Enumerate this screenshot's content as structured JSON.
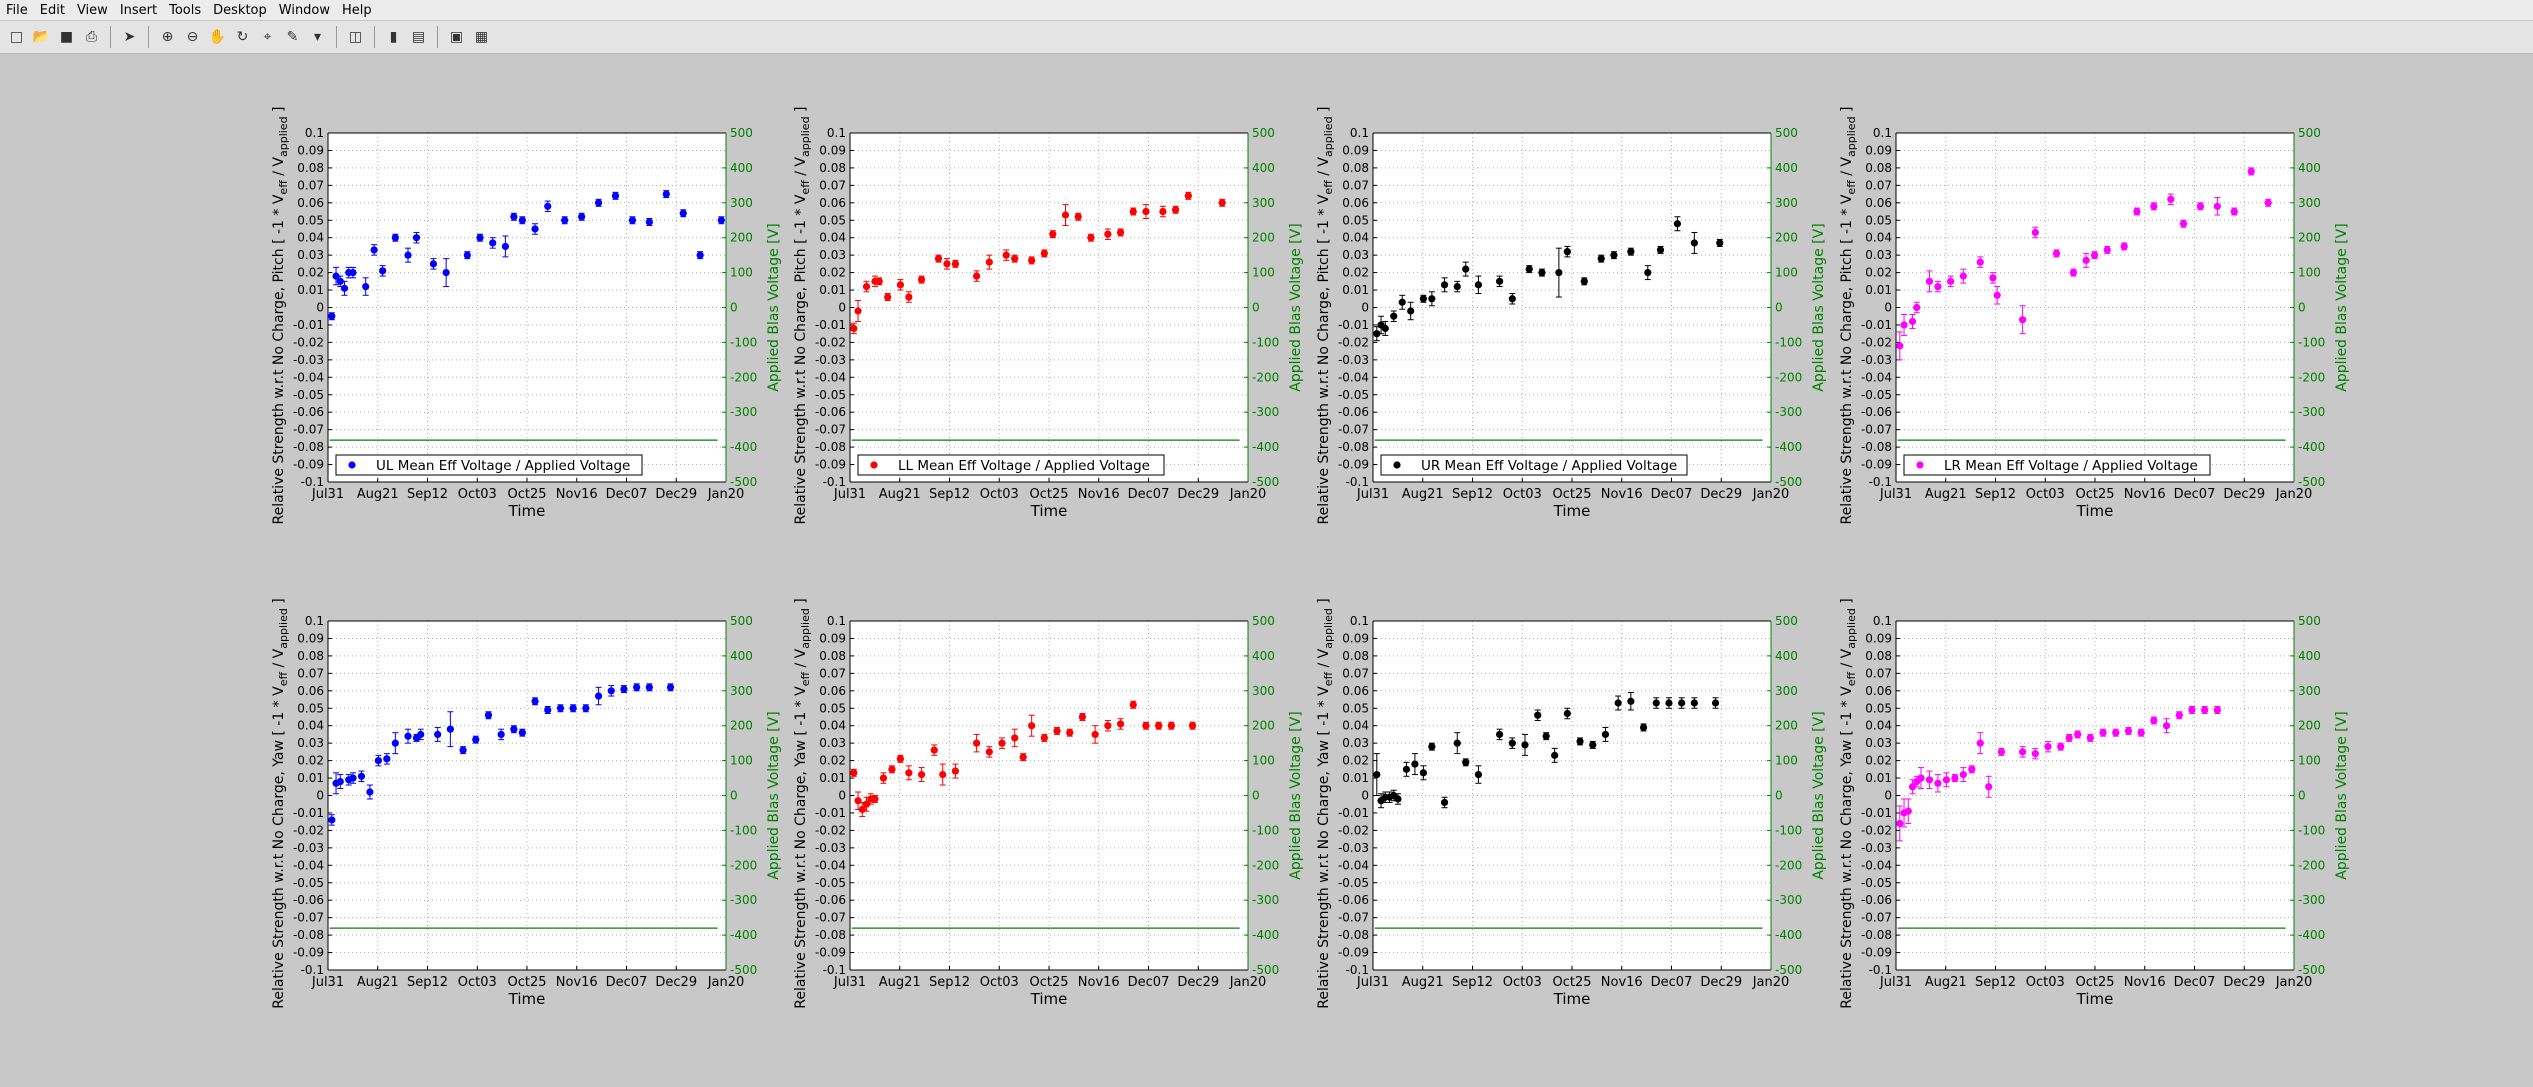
{
  "window": {
    "menus": [
      "File",
      "Edit",
      "View",
      "Insert",
      "Tools",
      "Desktop",
      "Window",
      "Help"
    ],
    "toolbar_icons": [
      "new-figure-icon",
      "open-file-icon",
      "save-icon",
      "print-icon",
      "pointer-icon",
      "zoom-in-icon",
      "zoom-out-icon",
      "pan-icon",
      "rotate-icon",
      "data-cursor-icon",
      "brush-icon",
      "link-icon",
      "colorbar-icon",
      "legend-icon",
      "hide-plot-tools-icon",
      "show-plot-tools-icon"
    ]
  },
  "axes_text": {
    "xlabel": "Time",
    "ylabel_pitch": "Relative Strength w.r.t No Charge, Pitch [ -1 * V",
    "ylabel_yaw": "Relative Strength w.r.t No Charge, Yaw [ -1 * V",
    "ylabel_sub_eff": "eff",
    "ylabel_sep": " / V",
    "ylabel_sub_app": "applied",
    "ylabel_end": " ]",
    "y2label": "Applied Blas Voltage [V]",
    "xticks": [
      "Jul31",
      "Aug21",
      "Sep12",
      "Oct03",
      "Oct25",
      "Nov16",
      "Dec07",
      "Dec29",
      "Jan20"
    ],
    "yticks": [
      "0.1",
      "0.09",
      "0.08",
      "0.07",
      "0.06",
      "0.05",
      "0.04",
      "0.03",
      "0.02",
      "0.01",
      "0",
      "-0.01",
      "-0.02",
      "-0.03",
      "-0.04",
      "-0.05",
      "-0.06",
      "-0.07",
      "-0.08",
      "-0.09",
      "-0.1"
    ],
    "y2ticks": [
      "500",
      "400",
      "300",
      "200",
      "100",
      "0",
      "-100",
      "-200",
      "-300",
      "-400",
      "-500"
    ]
  },
  "chart_data": [
    {
      "type": "scatter",
      "quadrant": "UL",
      "orientation": "Pitch",
      "color": "#0000ff",
      "series": [
        {
          "name": "UL Mean Eff Voltage / Applied Voltage",
          "x": [
            0.9,
            1.9,
            2.9,
            3.9,
            4.9,
            5.9,
            8.9,
            10.9,
            12.9,
            15.9,
            18.9,
            20.9,
            24.9,
            27.9,
            32.9,
            35.9,
            38.9,
            41.9,
            43.9,
            45.9,
            48.9,
            51.9,
            55.9,
            59.9,
            63.9,
            67.9,
            71.9,
            75.9,
            79.9,
            83.9,
            87.9,
            92.9
          ],
          "y": [
            -0.005,
            0.018,
            0.015,
            0.011,
            0.02,
            0.02,
            0.012,
            0.033,
            0.021,
            0.04,
            0.03,
            0.04,
            0.025,
            0.02,
            0.03,
            0.04,
            0.037,
            0.035,
            0.052,
            0.05,
            0.045,
            0.058,
            0.05,
            0.052,
            0.06,
            0.064,
            0.05,
            0.049,
            0.065,
            0.054,
            0.03,
            0.05
          ],
          "err": [
            0.002,
            0.005,
            0.003,
            0.004,
            0.003,
            0.003,
            0.005,
            0.003,
            0.003,
            0.002,
            0.004,
            0.003,
            0.003,
            0.008,
            0.002,
            0.002,
            0.003,
            0.006,
            0.002,
            0.002,
            0.003,
            0.003,
            0.002,
            0.002,
            0.002,
            0.002,
            0.002,
            0.002,
            0.002,
            0.002,
            0.002,
            0.002
          ]
        },
        {
          "name": "Applied Blas Voltage",
          "axis": "right",
          "color": "#008000",
          "x": [
            0,
            94
          ],
          "y": [
            -380,
            -380
          ]
        }
      ]
    },
    {
      "type": "scatter",
      "quadrant": "LL",
      "orientation": "Pitch",
      "color": "#ff0000",
      "series": [
        {
          "name": "LL Mean Eff Voltage / Applied Voltage",
          "x": [
            0.9,
            1.9,
            3.9,
            5.9,
            6.9,
            8.9,
            11.9,
            13.9,
            16.9,
            20.9,
            22.9,
            24.9,
            29.9,
            32.9,
            36.9,
            38.9,
            42.9,
            45.9,
            47.9,
            50.9,
            53.9,
            56.9,
            60.9,
            63.9,
            66.9,
            69.9,
            73.9,
            76.9,
            79.9,
            87.9
          ],
          "y": [
            -0.012,
            -0.002,
            0.012,
            0.015,
            0.015,
            0.006,
            0.013,
            0.006,
            0.016,
            0.028,
            0.025,
            0.025,
            0.018,
            0.026,
            0.03,
            0.028,
            0.027,
            0.031,
            0.042,
            0.053,
            0.052,
            0.04,
            0.042,
            0.043,
            0.055,
            0.055,
            0.055,
            0.056,
            0.064,
            0.06
          ],
          "err": [
            0.003,
            0.006,
            0.003,
            0.003,
            0.002,
            0.002,
            0.003,
            0.003,
            0.002,
            0.002,
            0.003,
            0.002,
            0.003,
            0.004,
            0.003,
            0.002,
            0.002,
            0.002,
            0.002,
            0.006,
            0.002,
            0.002,
            0.003,
            0.002,
            0.002,
            0.004,
            0.003,
            0.002,
            0.002,
            0.002
          ]
        },
        {
          "name": "Applied Blas Voltage",
          "axis": "right",
          "color": "#008000",
          "x": [
            0,
            94
          ],
          "y": [
            -380,
            -380
          ]
        }
      ]
    },
    {
      "type": "scatter",
      "quadrant": "UR",
      "orientation": "Pitch",
      "color": "#000000",
      "series": [
        {
          "name": "UR Mean Eff Voltage / Applied Voltage",
          "x": [
            0.9,
            1.9,
            2.9,
            4.9,
            6.9,
            8.9,
            11.9,
            13.9,
            16.9,
            19.9,
            21.9,
            24.9,
            29.9,
            32.9,
            36.9,
            39.9,
            43.9,
            45.9,
            49.9,
            53.9,
            56.9,
            60.9,
            64.9,
            67.9,
            71.9,
            75.9,
            81.9
          ],
          "y": [
            -0.015,
            -0.01,
            -0.012,
            -0.005,
            0.003,
            -0.002,
            0.005,
            0.005,
            0.013,
            0.012,
            0.022,
            0.013,
            0.015,
            0.005,
            0.022,
            0.02,
            0.02,
            0.032,
            0.015,
            0.028,
            0.03,
            0.032,
            0.02,
            0.033,
            0.048,
            0.037,
            0.037
          ],
          "err": [
            0.004,
            0.005,
            0.004,
            0.003,
            0.004,
            0.005,
            0.002,
            0.004,
            0.004,
            0.003,
            0.004,
            0.005,
            0.003,
            0.003,
            0.002,
            0.002,
            0.014,
            0.003,
            0.002,
            0.002,
            0.002,
            0.002,
            0.004,
            0.002,
            0.004,
            0.006,
            0.002
          ]
        },
        {
          "name": "Applied Blas Voltage",
          "axis": "right",
          "color": "#008000",
          "x": [
            0,
            94
          ],
          "y": [
            -380,
            -380
          ]
        }
      ]
    },
    {
      "type": "scatter",
      "quadrant": "LR",
      "orientation": "Pitch",
      "color": "#ff00ff",
      "series": [
        {
          "name": "LR Mean Eff Voltage / Applied Voltage",
          "x": [
            0.9,
            1.9,
            3.9,
            4.9,
            7.9,
            9.9,
            12.9,
            15.9,
            19.9,
            22.9,
            23.9,
            29.9,
            32.9,
            37.9,
            41.9,
            44.9,
            46.9,
            49.9,
            53.9,
            56.9,
            60.9,
            64.9,
            67.9,
            71.9,
            75.9,
            79.9,
            83.9,
            87.9
          ],
          "y": [
            -0.022,
            -0.01,
            -0.008,
            0.0,
            0.015,
            0.012,
            0.015,
            0.018,
            0.026,
            0.017,
            0.007,
            -0.007,
            0.043,
            0.031,
            0.02,
            0.027,
            0.03,
            0.033,
            0.035,
            0.055,
            0.058,
            0.062,
            0.048,
            0.058,
            0.058,
            0.055,
            0.078,
            0.06
          ],
          "err": [
            0.008,
            0.006,
            0.004,
            0.003,
            0.006,
            0.003,
            0.003,
            0.004,
            0.003,
            0.003,
            0.005,
            0.008,
            0.003,
            0.002,
            0.002,
            0.004,
            0.002,
            0.002,
            0.002,
            0.002,
            0.002,
            0.003,
            0.002,
            0.002,
            0.005,
            0.002,
            0.002,
            0.002
          ]
        },
        {
          "name": "Applied Blas Voltage",
          "axis": "right",
          "color": "#008000",
          "x": [
            0,
            94
          ],
          "y": [
            -380,
            -380
          ]
        }
      ]
    },
    {
      "type": "scatter",
      "quadrant": "UL",
      "orientation": "Yaw",
      "color": "#0000ff",
      "series": [
        {
          "name": "",
          "x": [
            0.9,
            1.9,
            2.9,
            4.9,
            5.9,
            7.9,
            9.9,
            11.9,
            13.9,
            15.9,
            18.9,
            20.9,
            21.9,
            25.9,
            28.9,
            31.9,
            34.9,
            37.9,
            40.9,
            43.9,
            45.9,
            48.9,
            51.9,
            54.9,
            57.9,
            60.9,
            63.9,
            66.9,
            69.9,
            72.9,
            75.9,
            80.9
          ],
          "y": [
            -0.014,
            0.007,
            0.008,
            0.009,
            0.01,
            0.011,
            0.002,
            0.02,
            0.021,
            0.03,
            0.034,
            0.033,
            0.035,
            0.035,
            0.038,
            0.026,
            0.032,
            0.046,
            0.035,
            0.038,
            0.036,
            0.054,
            0.049,
            0.05,
            0.05,
            0.05,
            0.057,
            0.06,
            0.061,
            0.062,
            0.062,
            0.062
          ],
          "err": [
            0.003,
            0.006,
            0.004,
            0.003,
            0.003,
            0.003,
            0.004,
            0.003,
            0.003,
            0.006,
            0.004,
            0.002,
            0.003,
            0.004,
            0.01,
            0.002,
            0.002,
            0.002,
            0.003,
            0.002,
            0.002,
            0.002,
            0.002,
            0.002,
            0.002,
            0.002,
            0.005,
            0.003,
            0.002,
            0.002,
            0.002,
            0.002
          ]
        },
        {
          "name": "Applied Blas Voltage",
          "axis": "right",
          "color": "#008000",
          "x": [
            0,
            94
          ],
          "y": [
            -380,
            -380
          ]
        }
      ]
    },
    {
      "type": "scatter",
      "quadrant": "LL",
      "orientation": "Yaw",
      "color": "#ff0000",
      "series": [
        {
          "name": "",
          "x": [
            0.9,
            1.9,
            2.9,
            3.9,
            4.9,
            5.9,
            7.9,
            9.9,
            11.9,
            13.9,
            16.9,
            19.9,
            21.9,
            24.9,
            29.9,
            32.9,
            35.9,
            38.9,
            40.9,
            42.9,
            45.9,
            48.9,
            51.9,
            54.9,
            57.9,
            60.9,
            63.9,
            66.9,
            69.9,
            72.9,
            75.9,
            80.9
          ],
          "y": [
            0.013,
            -0.003,
            -0.008,
            -0.005,
            -0.002,
            -0.002,
            0.01,
            0.015,
            0.021,
            0.013,
            0.012,
            0.026,
            0.012,
            0.014,
            0.03,
            0.025,
            0.03,
            0.033,
            0.022,
            0.04,
            0.033,
            0.037,
            0.036,
            0.045,
            0.035,
            0.04,
            0.041,
            0.052,
            0.04,
            0.04,
            0.04,
            0.04
          ],
          "err": [
            0.002,
            0.005,
            0.004,
            0.004,
            0.003,
            0.002,
            0.003,
            0.002,
            0.002,
            0.004,
            0.004,
            0.003,
            0.006,
            0.004,
            0.005,
            0.003,
            0.003,
            0.005,
            0.002,
            0.006,
            0.002,
            0.002,
            0.002,
            0.002,
            0.005,
            0.003,
            0.003,
            0.002,
            0.002,
            0.002,
            0.002,
            0.002
          ]
        },
        {
          "name": "Applied Blas Voltage",
          "axis": "right",
          "color": "#008000",
          "x": [
            0,
            94
          ],
          "y": [
            -380,
            -380
          ]
        }
      ]
    },
    {
      "type": "scatter",
      "quadrant": "UR",
      "orientation": "Yaw",
      "color": "#000000",
      "series": [
        {
          "name": "",
          "x": [
            0.9,
            1.9,
            2.9,
            3.9,
            4.9,
            5.9,
            7.9,
            9.9,
            11.9,
            13.9,
            16.9,
            19.9,
            21.9,
            24.9,
            29.9,
            32.9,
            35.9,
            38.9,
            40.9,
            42.9,
            45.9,
            48.9,
            51.9,
            54.9,
            57.9,
            60.9,
            63.9,
            66.9,
            69.9,
            72.9,
            75.9,
            80.9
          ],
          "y": [
            0.012,
            -0.003,
            -0.001,
            -0.001,
            0.0,
            -0.002,
            0.015,
            0.018,
            0.013,
            0.028,
            -0.004,
            0.03,
            0.019,
            0.012,
            0.035,
            0.03,
            0.029,
            0.046,
            0.034,
            0.023,
            0.047,
            0.031,
            0.029,
            0.035,
            0.053,
            0.054,
            0.039,
            0.053,
            0.053,
            0.053,
            0.053,
            0.053
          ],
          "err": [
            0.012,
            0.004,
            0.003,
            0.003,
            0.003,
            0.003,
            0.004,
            0.006,
            0.004,
            0.002,
            0.003,
            0.006,
            0.002,
            0.005,
            0.003,
            0.003,
            0.006,
            0.003,
            0.002,
            0.004,
            0.003,
            0.002,
            0.002,
            0.004,
            0.004,
            0.005,
            0.002,
            0.003,
            0.003,
            0.003,
            0.003,
            0.003
          ]
        },
        {
          "name": "Applied Blas Voltage",
          "axis": "right",
          "color": "#008000",
          "x": [
            0,
            94
          ],
          "y": [
            -380,
            -380
          ]
        }
      ]
    },
    {
      "type": "scatter",
      "quadrant": "LR",
      "orientation": "Yaw",
      "color": "#ff00ff",
      "series": [
        {
          "name": "",
          "x": [
            0.9,
            1.9,
            2.9,
            3.9,
            4.9,
            5.9,
            7.9,
            9.9,
            11.9,
            13.9,
            15.9,
            17.9,
            19.9,
            21.9,
            24.9,
            29.9,
            32.9,
            35.9,
            38.9,
            40.9,
            42.9,
            45.9,
            48.9,
            51.9,
            54.9,
            57.9,
            60.9,
            63.9,
            66.9,
            69.9,
            72.9,
            75.9
          ],
          "y": [
            -0.016,
            -0.01,
            -0.009,
            0.005,
            0.008,
            0.01,
            0.009,
            0.007,
            0.009,
            0.01,
            0.012,
            0.015,
            0.03,
            0.005,
            0.025,
            0.025,
            0.024,
            0.028,
            0.028,
            0.033,
            0.035,
            0.033,
            0.036,
            0.036,
            0.037,
            0.036,
            0.043,
            0.04,
            0.046,
            0.049,
            0.049,
            0.049
          ],
          "err": [
            0.01,
            0.008,
            0.007,
            0.004,
            0.003,
            0.006,
            0.005,
            0.005,
            0.004,
            0.002,
            0.004,
            0.002,
            0.006,
            0.006,
            0.002,
            0.003,
            0.003,
            0.003,
            0.002,
            0.002,
            0.002,
            0.002,
            0.002,
            0.002,
            0.002,
            0.002,
            0.002,
            0.004,
            0.002,
            0.002,
            0.002,
            0.002
          ]
        },
        {
          "name": "Applied Blas Voltage",
          "axis": "right",
          "color": "#008000",
          "x": [
            0,
            94
          ],
          "y": [
            -380,
            -380
          ]
        }
      ]
    }
  ]
}
